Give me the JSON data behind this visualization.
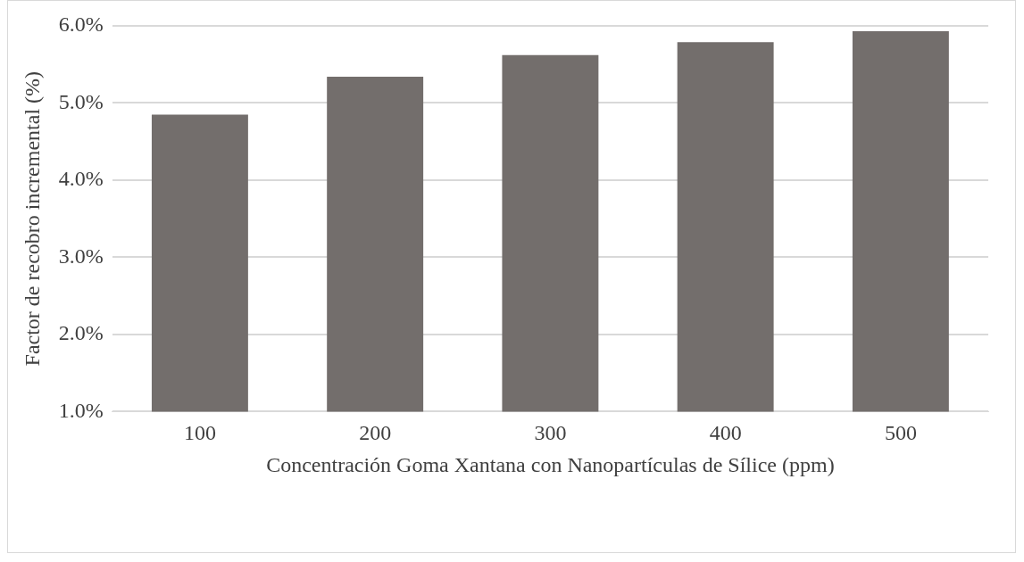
{
  "chart_data": {
    "type": "bar",
    "xlabel": "Concentración Goma Xantana con Nanopartículas de Sílice (ppm)",
    "ylabel": "Factor de recobro incremental (%)",
    "categories": [
      "100",
      "200",
      "300",
      "400",
      "500"
    ],
    "values": [
      4.85,
      5.34,
      5.62,
      5.79,
      5.93
    ],
    "color": "#736e6c",
    "ylim": [
      1,
      6
    ],
    "yticks": [
      {
        "value": 1,
        "label": "1.0%"
      },
      {
        "value": 2,
        "label": "2.0%"
      },
      {
        "value": 3,
        "label": "3.0%"
      },
      {
        "value": 4,
        "label": "4.0%"
      },
      {
        "value": 5,
        "label": "5.0%"
      },
      {
        "value": 6,
        "label": "6.0%"
      }
    ],
    "grid": "y",
    "legend": false
  }
}
